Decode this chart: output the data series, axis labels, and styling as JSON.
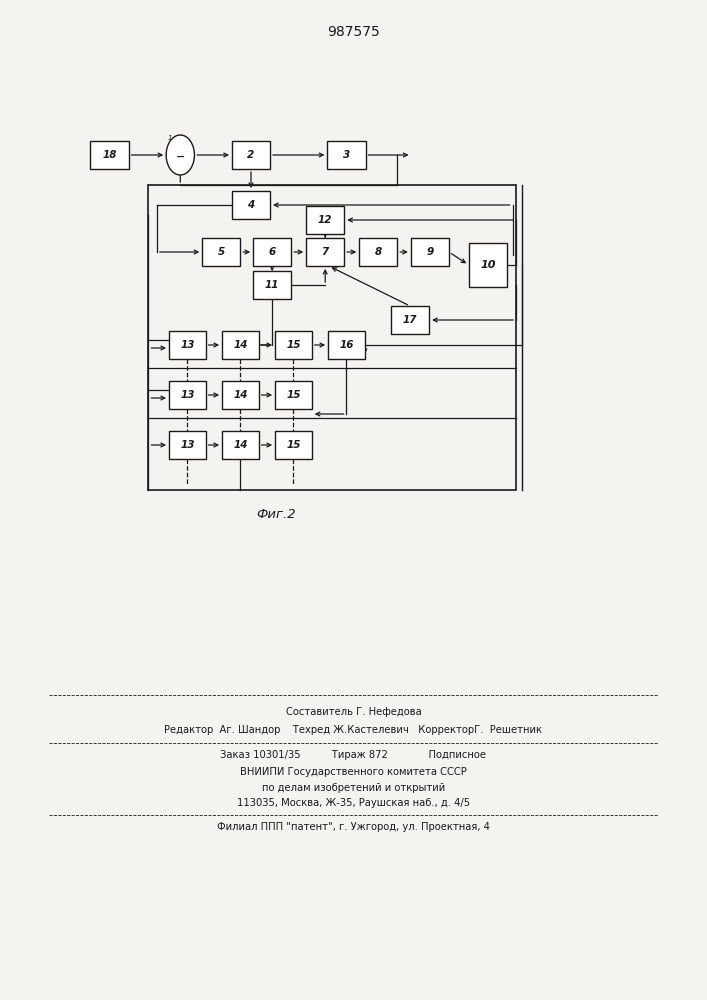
{
  "title": "987575",
  "fig_label": "Фиг.2",
  "bg_color": "#f5f3ef",
  "line_color": "#1a1a1a",
  "box_color": "#ffffff",
  "text_color": "#1a1a1a",
  "footer_lines": [
    "Составитель Г. Нефедова",
    "Редактор  Аг. Шандор    Техред Ж.Кастелевич   КорректорГ.  Решетник",
    "Заказ 10301/35          Тираж 872             Подписное",
    "ВНИИПИ Государственного комитета СССР",
    "по делам изобретений и открытий",
    "113035, Москва, Ж-35, Раушская наб., д. 4/5",
    "Филиал ППП \"патент\", г. Ужгород, ул. Проектная, 4"
  ]
}
